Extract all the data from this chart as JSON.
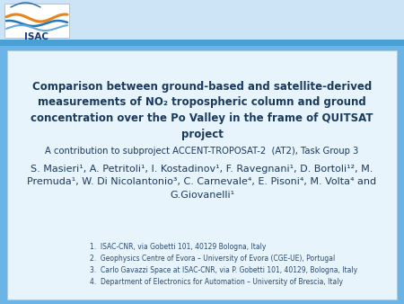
{
  "bg_color": "#6ab4e8",
  "header_bg": "#cce4f5",
  "blue_bar_color": "#4a9fd4",
  "content_bg": "#d6eaf8",
  "title_text_line1": "Comparison between ground-based and satellite-derived",
  "title_text_line2": "measurements of NO",
  "title_text_line2b": "2",
  "title_text_line3": " tropospheric column and ground",
  "title_text_line4": "concentration over the Po Valley in the frame of QUITSAT",
  "title_text_line5": "project",
  "subtitle_text": "A contribution to subproject ACCENT-TROPOSAT-2  (AT2), Task Group 3",
  "authors_text": "S. Masieri¹, A. Petritoli¹, I. Kostadinov¹, F. Ravegnani¹, D. Bortoli¹², M.\nPremuda¹, W. Di Nicolantonio³, C. Carnevale⁴, E. Pisoni⁴, M. Volta⁴ and\nG.Giovanelli¹",
  "affiliations": [
    "1.  ISAC-CNR, via Gobetti 101, 40129 Bologna, Italy",
    "2.  Geophysics Centre of Evora – University of Evora (CGE-UE), Portugal",
    "3.  Carlo Gavazzi Space at ISAC-CNR, via P. Gobetti 101, 40129, Bologna, Italy",
    "4.  Department of Electronics for Automation – University of Brescia, Italy"
  ],
  "text_color": "#1a3a5c",
  "text_color_affil": "#2a4a6c",
  "title_fontsize": 8.5,
  "subtitle_fontsize": 7.2,
  "authors_fontsize": 8.0,
  "affil_fontsize": 5.5,
  "isac_text_color": "#1a3a7c"
}
